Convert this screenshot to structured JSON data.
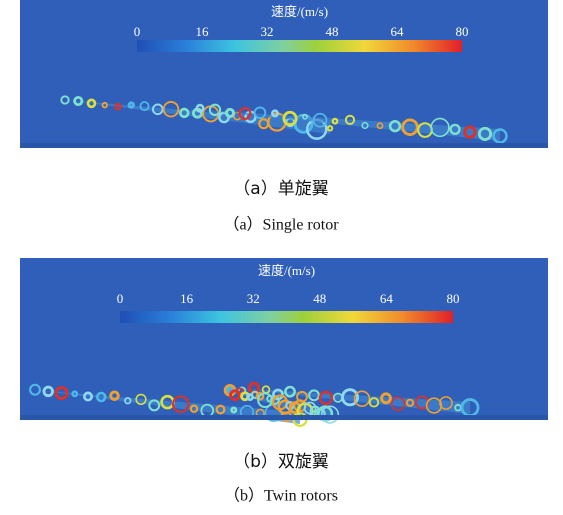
{
  "panels": [
    {
      "colorbar": {
        "label": "速度/(m/s)",
        "range": [
          0,
          80
        ],
        "ticks": [
          0,
          16,
          32,
          48,
          64,
          80
        ]
      },
      "caption_cn": "（a）单旋翼",
      "caption_en": "（a）Single rotor"
    },
    {
      "colorbar": {
        "label": "速度/(m/s)",
        "range": [
          0,
          80
        ],
        "ticks": [
          0,
          16,
          32,
          48,
          64,
          80
        ]
      },
      "caption_cn": "（b）双旋翼",
      "caption_en": "（b）Twin rotors"
    }
  ]
}
